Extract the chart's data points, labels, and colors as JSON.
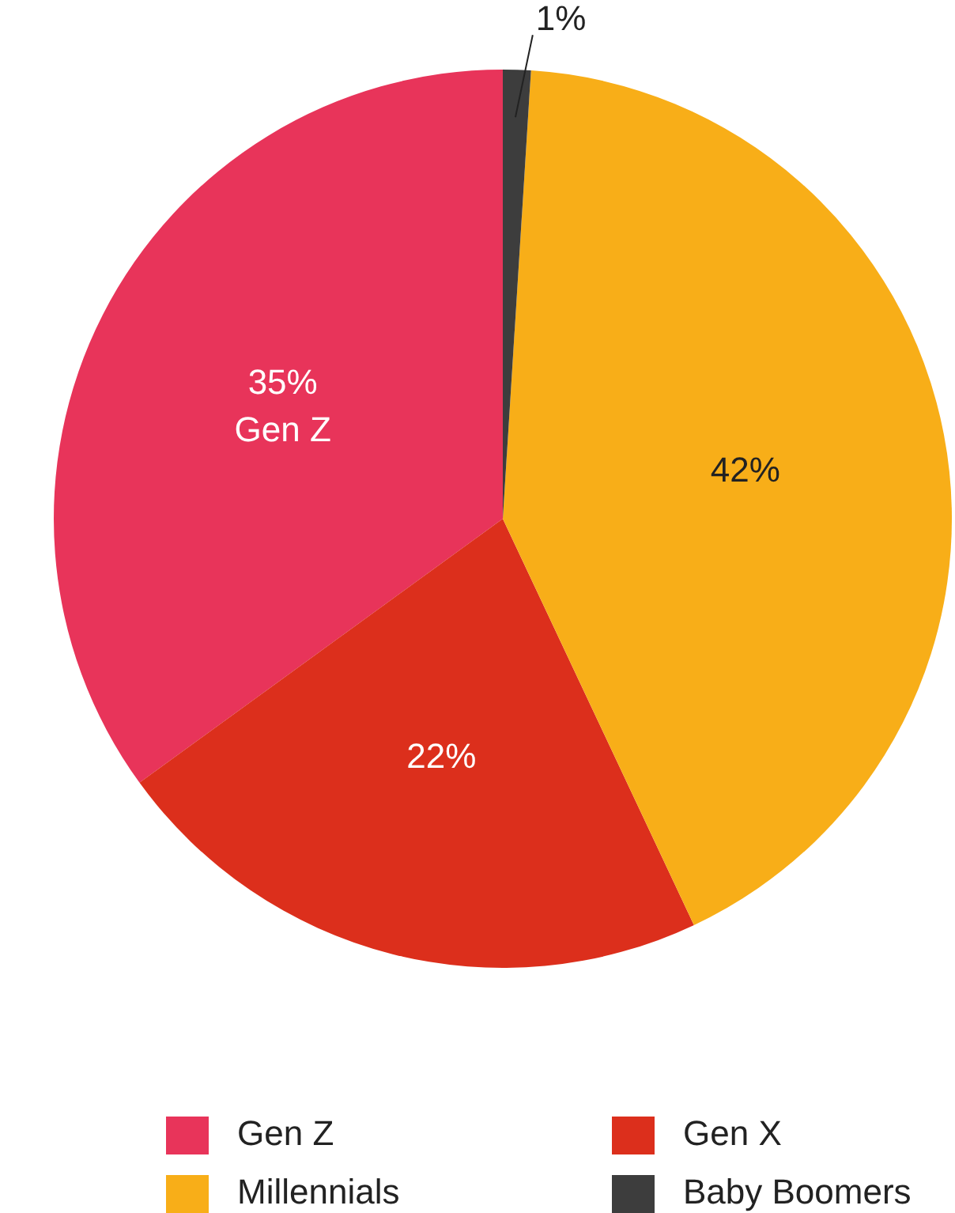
{
  "chart_data": {
    "type": "pie",
    "categories": [
      "Gen Z",
      "Gen X",
      "Millennials",
      "Baby Boomers"
    ],
    "values": [
      35,
      22,
      42,
      1
    ],
    "colors": [
      "#e8345a",
      "#dc2f1c",
      "#f8ae18",
      "#3d3d3d"
    ],
    "value_labels": [
      "35%\nGen Z",
      "22%",
      "42%",
      "1%"
    ],
    "legend": "bottom"
  }
}
